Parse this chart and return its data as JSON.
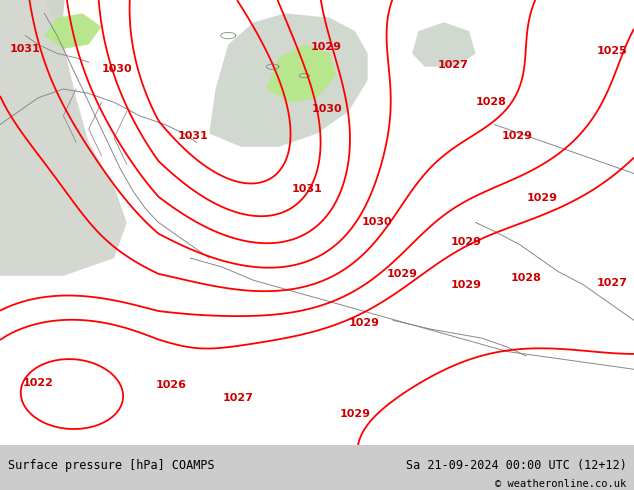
{
  "title_left": "Surface pressure [hPa] COAMPS",
  "title_right": "Sa 21-09-2024 00:00 UTC (12+12)",
  "copyright": "© weatheronline.co.uk",
  "bg_color_land": "#b8e68c",
  "isobar_color": "#ff0000",
  "coast_color": "#888888",
  "label_color": "#cc0000",
  "bottom_text_color": "#000000",
  "figsize": [
    6.34,
    4.9
  ],
  "dpi": 100
}
